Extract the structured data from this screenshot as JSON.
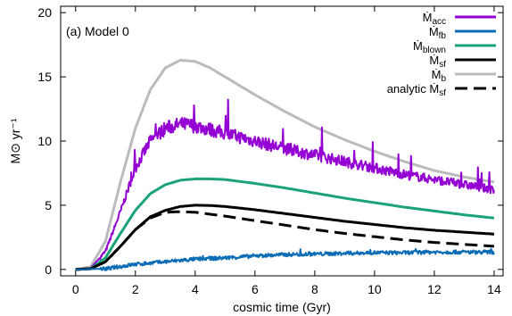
{
  "chart_data": {
    "type": "line",
    "title": "",
    "panel_label": "(a) Model 0",
    "xlabel": "cosmic time (Gyr)",
    "ylabel": "M⊙ yr⁻¹",
    "xlim": [
      -0.5,
      14.3
    ],
    "ylim": [
      -0.5,
      20.5
    ],
    "xticks": [
      0,
      2,
      4,
      6,
      8,
      10,
      12,
      14
    ],
    "yticks": [
      0,
      5,
      10,
      15,
      20
    ],
    "grid": false,
    "legend": "top-right",
    "series": [
      {
        "name": "Ṁacc",
        "legend_main": "Ṁ",
        "legend_sub": "acc",
        "color": "#9400d3",
        "dash": "solid",
        "noisy": true,
        "x": [
          0,
          0.5,
          1.0,
          1.5,
          2.0,
          2.5,
          3.0,
          3.5,
          4.0,
          5.0,
          6.0,
          7.0,
          8.0,
          9.0,
          10.0,
          11.0,
          12.0,
          13.0,
          14.0
        ],
        "y": [
          0,
          0.1,
          1.4,
          4.5,
          7.9,
          10.0,
          11.0,
          11.3,
          11.2,
          10.6,
          10.0,
          9.4,
          8.9,
          8.4,
          7.9,
          7.4,
          7.0,
          6.6,
          6.2
        ]
      },
      {
        "name": "Ṁfb",
        "legend_main": "Ṁ",
        "legend_sub": "fb",
        "color": "#0a6cb5",
        "dash": "solid",
        "noisy": true,
        "x": [
          0,
          1.0,
          2.0,
          3.0,
          4.0,
          5.0,
          6.0,
          7.0,
          8.0,
          9.0,
          10.0,
          11.0,
          12.0,
          13.0,
          14.0
        ],
        "y": [
          0,
          0.05,
          0.4,
          0.6,
          0.8,
          0.9,
          1.05,
          1.15,
          1.2,
          1.25,
          1.3,
          1.3,
          1.35,
          1.35,
          1.35
        ]
      },
      {
        "name": "Ṁblown",
        "legend_main": "Ṁ",
        "legend_sub": "blown",
        "color": "#1aa37a",
        "dash": "solid",
        "noisy": false,
        "x": [
          0,
          0.5,
          1.0,
          1.5,
          2.0,
          2.5,
          3.0,
          3.5,
          4.0,
          4.5,
          5.0,
          6.0,
          7.0,
          8.0,
          9.0,
          10.0,
          11.0,
          12.0,
          13.0,
          14.0
        ],
        "y": [
          0,
          0.05,
          0.9,
          2.8,
          4.6,
          5.9,
          6.6,
          6.95,
          7.05,
          7.05,
          7.0,
          6.7,
          6.35,
          5.95,
          5.55,
          5.2,
          4.85,
          4.55,
          4.25,
          4.0
        ]
      },
      {
        "name": "Ṁsf",
        "legend_main": "Ṁ",
        "legend_sub": "sf",
        "color": "#000000",
        "dash": "solid",
        "noisy": false,
        "x": [
          0,
          0.5,
          1.0,
          1.5,
          2.0,
          2.5,
          3.0,
          3.5,
          4.0,
          4.5,
          5.0,
          6.0,
          7.0,
          8.0,
          9.0,
          10.0,
          11.0,
          12.0,
          13.0,
          14.0
        ],
        "y": [
          0,
          0.05,
          0.6,
          1.8,
          3.1,
          4.1,
          4.6,
          4.9,
          5.0,
          4.98,
          4.9,
          4.65,
          4.35,
          4.05,
          3.75,
          3.5,
          3.25,
          3.05,
          2.9,
          2.75
        ]
      },
      {
        "name": "Ṁb",
        "legend_main": "Ṁ",
        "legend_sub": "b",
        "color": "#bbbbbb",
        "dash": "solid",
        "noisy": false,
        "x": [
          0,
          0.5,
          1.0,
          1.5,
          2.0,
          2.5,
          3.0,
          3.5,
          4.0,
          4.5,
          5.0,
          6.0,
          7.0,
          8.0,
          9.0,
          10.0,
          11.0,
          12.0,
          13.0,
          14.0
        ],
        "y": [
          0,
          0.2,
          2.2,
          6.8,
          11.0,
          14.0,
          15.7,
          16.3,
          16.2,
          15.7,
          15.0,
          13.6,
          12.3,
          11.1,
          10.1,
          9.2,
          8.4,
          7.7,
          7.2,
          6.8
        ]
      },
      {
        "name": "analytic Ṁsf",
        "legend_main": "analytic Ṁ",
        "legend_sub": "sf",
        "color": "#000000",
        "dash": "dashed",
        "noisy": false,
        "x": [
          0,
          0.5,
          1.0,
          1.5,
          2.0,
          2.5,
          3.0,
          3.5,
          4.0,
          4.5,
          5.0,
          6.0,
          7.0,
          8.0,
          9.0,
          10.0,
          11.0,
          12.0,
          13.0,
          14.0
        ],
        "y": [
          0,
          0.05,
          0.6,
          1.8,
          3.1,
          4.0,
          4.45,
          4.5,
          4.45,
          4.3,
          4.15,
          3.8,
          3.45,
          3.1,
          2.8,
          2.55,
          2.3,
          2.1,
          1.95,
          1.8
        ]
      }
    ]
  }
}
